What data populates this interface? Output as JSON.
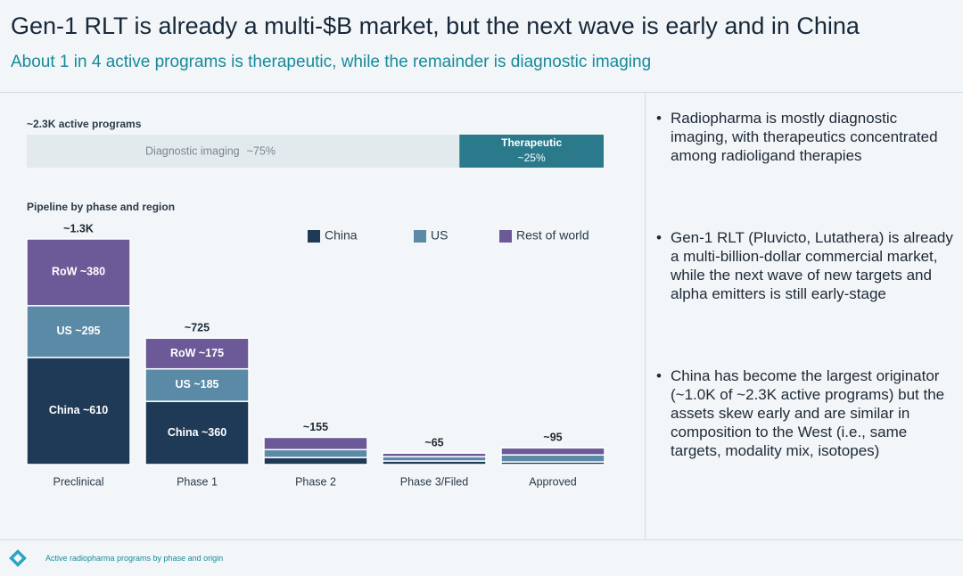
{
  "header": {
    "title": "Gen-1 RLT is already a multi-$B market, but the next wave is early and in China",
    "subtitle": "About 1 in 4 active programs is therapeutic, while the remainder is diagnostic imaging"
  },
  "chart_data": [
    {
      "type": "bar",
      "orientation": "horizontal",
      "stacked": true,
      "title": "~2.3K active programs",
      "series": [
        {
          "name": "Diagnostic imaging",
          "color": "#e3eaee",
          "values": [
            75
          ],
          "value_labels": [
            "~75%"
          ]
        },
        {
          "name": "Therapeutic",
          "color": "#2b7a8c",
          "values": [
            25
          ],
          "value_labels": [
            "~25%"
          ]
        }
      ]
    },
    {
      "type": "bar",
      "orientation": "vertical",
      "stacked": true,
      "title": "Pipeline by phase and region",
      "categories": [
        "Preclinical",
        "Phase 1",
        "Phase 2",
        "Phase 3/Filed",
        "Approved"
      ],
      "series": [
        {
          "name": "China",
          "color": "#1f3a56",
          "values": [
            610,
            360,
            40,
            20,
            15
          ],
          "value_labels": [
            "China ~610",
            "China ~360",
            null,
            null,
            null
          ]
        },
        {
          "name": "US",
          "color": "#5b8aa6",
          "values": [
            295,
            185,
            45,
            25,
            40
          ],
          "value_labels": [
            "US ~295",
            "US ~185",
            null,
            null,
            null
          ]
        },
        {
          "name": "Rest of world",
          "color": "#6c5a98",
          "values": [
            380,
            175,
            70,
            20,
            40
          ],
          "value_labels": [
            "RoW ~380",
            "RoW ~175",
            null,
            null,
            null
          ]
        }
      ],
      "total_labels": [
        "~1.3K",
        "~725",
        "~155",
        "~65",
        "~95"
      ],
      "legend": "top-right"
    }
  ],
  "bullets": [
    "Radiopharma is mostly diagnostic imaging, with therapeutics concentrated among radioligand therapies",
    "Gen-1 RLT (Pluvicto, Lutathera) is already a multi-billion-dollar commercial market, while the next wave of new targets and alpha emitters is still early-stage",
    "China has become the largest originator (~1.0K of ~2.3K active programs) but the assets skew early and are similar in composition to the West (i.e., same targets, modality mix, isotopes)"
  ],
  "footer": "Active radiopharma programs by phase and origin"
}
